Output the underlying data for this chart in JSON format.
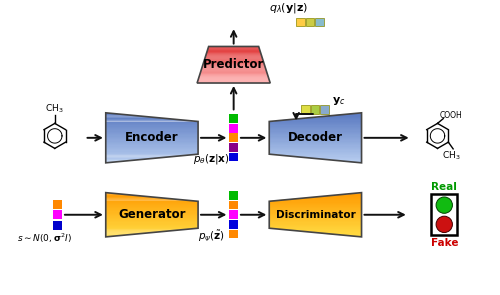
{
  "enc_color_light": "#b8cef0",
  "enc_color_dark": "#5878c0",
  "dec_color_light": "#b8cef0",
  "dec_color_dark": "#5878c0",
  "gen_color_light": "#ffdd44",
  "gen_color_dark": "#ff9900",
  "dis_color_light": "#ffdd44",
  "dis_color_dark": "#ff9900",
  "pred_color_light": "#ffaaaa",
  "pred_color_dark": "#dd2222",
  "latent_colors_enc": [
    "#00bb00",
    "#ff00ff",
    "#ff8800",
    "#880088",
    "#0000dd"
  ],
  "latent_colors_gen": [
    "#00bb00",
    "#ff8800",
    "#ff00ff",
    "#0000dd",
    "#ff8800"
  ],
  "input_vec_colors": [
    "#ff8800",
    "#ff00ff",
    "#0000cc"
  ],
  "yc_colors": [
    "#dddd44",
    "#aacc44",
    "#88aacc"
  ],
  "ql_colors": [
    "#ffcc44",
    "#cccc44",
    "#88bbcc"
  ],
  "traffic_green": "#11bb11",
  "traffic_red": "#cc1111",
  "arrow_color": "#111111",
  "bg_color": "#ffffff",
  "encoder_label": "Encoder",
  "decoder_label": "Decoder",
  "generator_label": "Generator",
  "discriminator_label": "Discriminator",
  "predictor_label": "Predictor",
  "real_color": "#009900",
  "fake_color": "#cc0000"
}
